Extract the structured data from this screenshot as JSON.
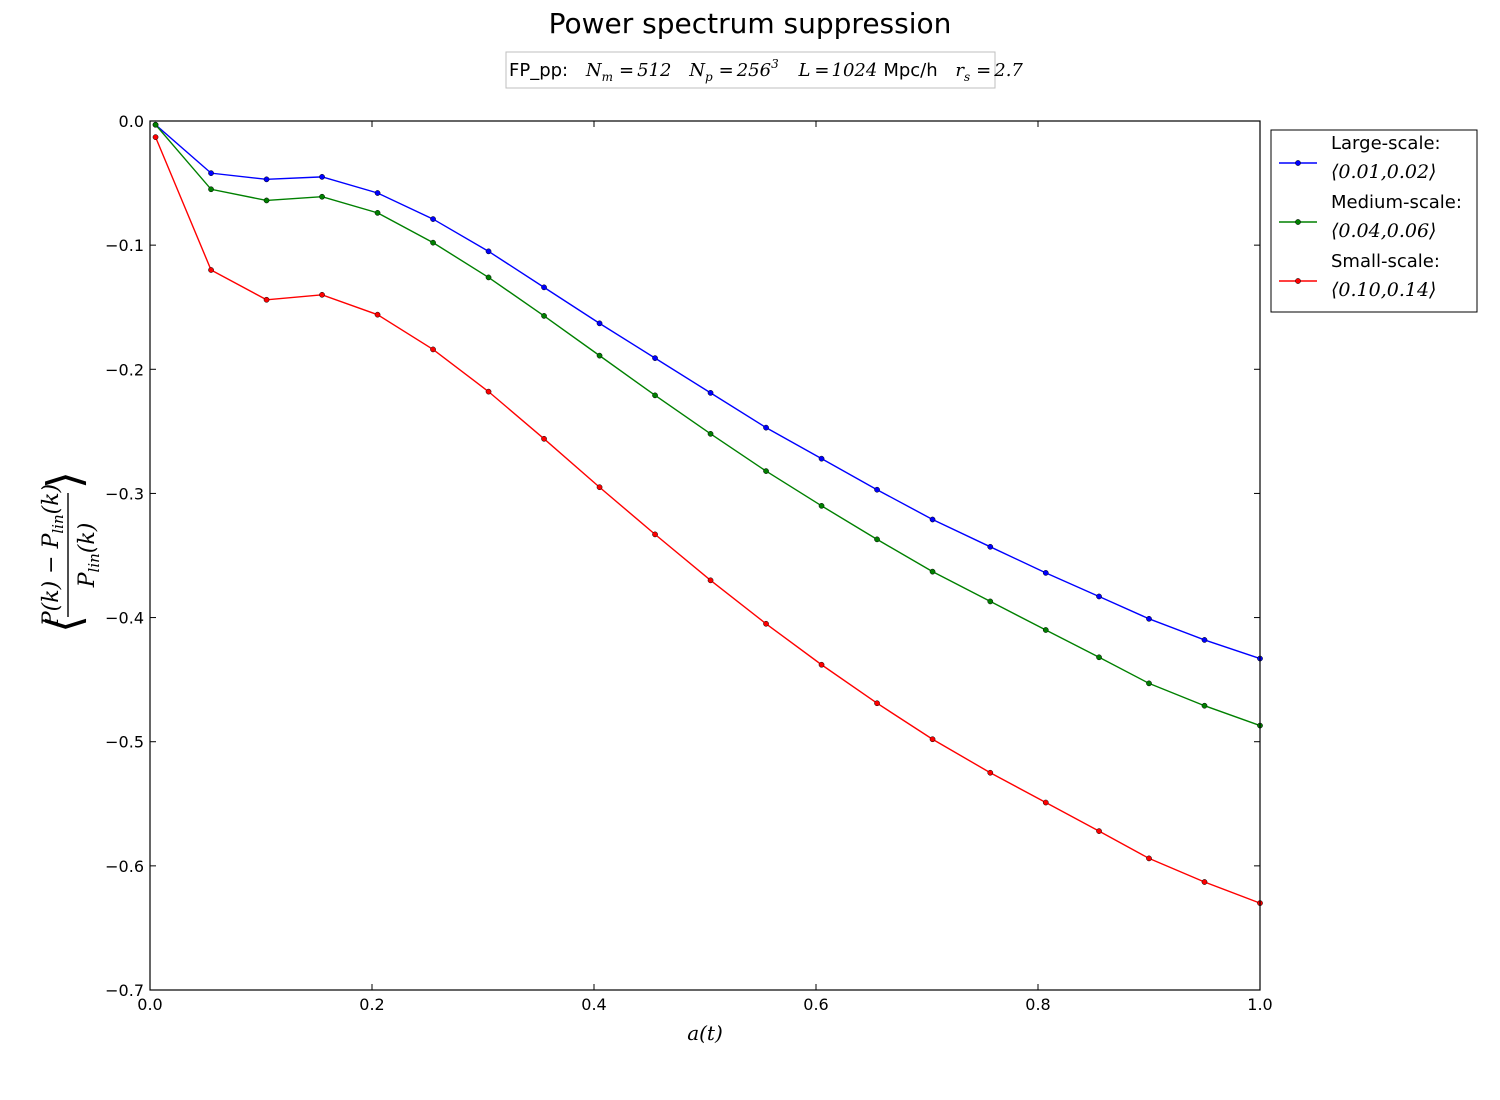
{
  "chart_data": {
    "type": "line",
    "title": "Power spectrum suppression",
    "subtitle": {
      "label": "FP_pp:",
      "n_m": "512",
      "n_p": "256",
      "n_p_exp": "3",
      "box": "1024",
      "box_unit": "Mpc/h",
      "r_s": "2.7"
    },
    "xlabel": "a(t)",
    "ylabel": "⟨(P(k) − P_lin(k)) / P_lin(k)⟩",
    "xlim": [
      0.0,
      1.0
    ],
    "ylim": [
      -0.7,
      0.0
    ],
    "xticks": [
      0.0,
      0.2,
      0.4,
      0.6,
      0.8,
      1.0
    ],
    "xtick_labels": [
      "0.0",
      "0.2",
      "0.4",
      "0.6",
      "0.8",
      "1.0"
    ],
    "yticks": [
      0.0,
      -0.1,
      -0.2,
      -0.3,
      -0.4,
      -0.5,
      -0.6,
      -0.7
    ],
    "ytick_labels": [
      "0.0",
      "−0.1",
      "−0.2",
      "−0.3",
      "−0.4",
      "−0.5",
      "−0.6",
      "−0.7"
    ],
    "grid": false,
    "legend_position": "outside-right-top",
    "x": [
      0.005,
      0.055,
      0.105,
      0.155,
      0.205,
      0.255,
      0.305,
      0.355,
      0.405,
      0.455,
      0.505,
      0.555,
      0.605,
      0.655,
      0.705,
      0.757,
      0.807,
      0.855,
      0.9,
      0.95,
      1.0
    ],
    "series": [
      {
        "name": "Large-scale:",
        "range": "⟨0.01,0.02⟩",
        "color": "#0000ff",
        "values": [
          -0.003,
          -0.042,
          -0.047,
          -0.045,
          -0.058,
          -0.079,
          -0.105,
          -0.134,
          -0.163,
          -0.191,
          -0.219,
          -0.247,
          -0.272,
          -0.297,
          -0.321,
          -0.343,
          -0.364,
          -0.383,
          -0.401,
          -0.418,
          -0.433
        ]
      },
      {
        "name": "Medium-scale:",
        "range": "⟨0.04,0.06⟩",
        "color": "#008000",
        "values": [
          -0.003,
          -0.055,
          -0.064,
          -0.061,
          -0.074,
          -0.098,
          -0.126,
          -0.157,
          -0.189,
          -0.221,
          -0.252,
          -0.282,
          -0.31,
          -0.337,
          -0.363,
          -0.387,
          -0.41,
          -0.432,
          -0.453,
          -0.471,
          -0.487
        ]
      },
      {
        "name": "Small-scale:",
        "range": "⟨0.10,0.14⟩",
        "color": "#ff0000",
        "values": [
          -0.013,
          -0.12,
          -0.144,
          -0.14,
          -0.156,
          -0.184,
          -0.218,
          -0.256,
          -0.295,
          -0.333,
          -0.37,
          -0.405,
          -0.438,
          -0.469,
          -0.498,
          -0.525,
          -0.549,
          -0.572,
          -0.594,
          -0.613,
          -0.63
        ]
      }
    ]
  }
}
